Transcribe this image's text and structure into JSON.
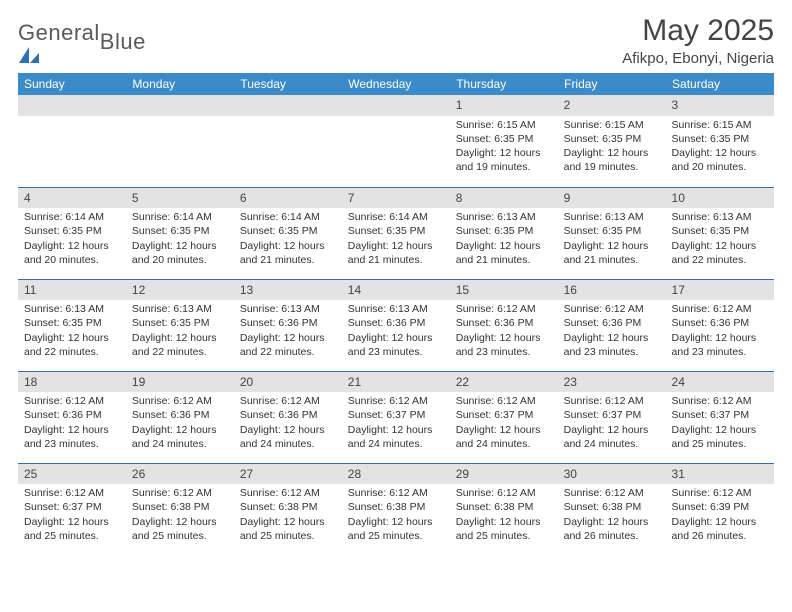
{
  "brand": {
    "part1": "General",
    "part2": "Blue"
  },
  "title": "May 2025",
  "location": "Afikpo, Ebonyi, Nigeria",
  "colors": {
    "header_bg": "#3b8bca",
    "header_text": "#ffffff",
    "daynum_bg": "#e3e3e3",
    "border": "#2f6fb3",
    "text": "#333333",
    "title": "#444444",
    "logo_gray": "#5a5a5a",
    "logo_blue": "#2f6fb3"
  },
  "typography": {
    "font_family": "Arial",
    "title_size_pt": 22,
    "location_size_pt": 11,
    "dayhead_size_pt": 9,
    "body_size_pt": 8
  },
  "dayHeaders": [
    "Sunday",
    "Monday",
    "Tuesday",
    "Wednesday",
    "Thursday",
    "Friday",
    "Saturday"
  ],
  "weeks": [
    [
      {
        "n": "",
        "sr": "",
        "ss": "",
        "dl": ""
      },
      {
        "n": "",
        "sr": "",
        "ss": "",
        "dl": ""
      },
      {
        "n": "",
        "sr": "",
        "ss": "",
        "dl": ""
      },
      {
        "n": "",
        "sr": "",
        "ss": "",
        "dl": ""
      },
      {
        "n": "1",
        "sr": "6:15 AM",
        "ss": "6:35 PM",
        "dl": "12 hours and 19 minutes."
      },
      {
        "n": "2",
        "sr": "6:15 AM",
        "ss": "6:35 PM",
        "dl": "12 hours and 19 minutes."
      },
      {
        "n": "3",
        "sr": "6:15 AM",
        "ss": "6:35 PM",
        "dl": "12 hours and 20 minutes."
      }
    ],
    [
      {
        "n": "4",
        "sr": "6:14 AM",
        "ss": "6:35 PM",
        "dl": "12 hours and 20 minutes."
      },
      {
        "n": "5",
        "sr": "6:14 AM",
        "ss": "6:35 PM",
        "dl": "12 hours and 20 minutes."
      },
      {
        "n": "6",
        "sr": "6:14 AM",
        "ss": "6:35 PM",
        "dl": "12 hours and 21 minutes."
      },
      {
        "n": "7",
        "sr": "6:14 AM",
        "ss": "6:35 PM",
        "dl": "12 hours and 21 minutes."
      },
      {
        "n": "8",
        "sr": "6:13 AM",
        "ss": "6:35 PM",
        "dl": "12 hours and 21 minutes."
      },
      {
        "n": "9",
        "sr": "6:13 AM",
        "ss": "6:35 PM",
        "dl": "12 hours and 21 minutes."
      },
      {
        "n": "10",
        "sr": "6:13 AM",
        "ss": "6:35 PM",
        "dl": "12 hours and 22 minutes."
      }
    ],
    [
      {
        "n": "11",
        "sr": "6:13 AM",
        "ss": "6:35 PM",
        "dl": "12 hours and 22 minutes."
      },
      {
        "n": "12",
        "sr": "6:13 AM",
        "ss": "6:35 PM",
        "dl": "12 hours and 22 minutes."
      },
      {
        "n": "13",
        "sr": "6:13 AM",
        "ss": "6:36 PM",
        "dl": "12 hours and 22 minutes."
      },
      {
        "n": "14",
        "sr": "6:13 AM",
        "ss": "6:36 PM",
        "dl": "12 hours and 23 minutes."
      },
      {
        "n": "15",
        "sr": "6:12 AM",
        "ss": "6:36 PM",
        "dl": "12 hours and 23 minutes."
      },
      {
        "n": "16",
        "sr": "6:12 AM",
        "ss": "6:36 PM",
        "dl": "12 hours and 23 minutes."
      },
      {
        "n": "17",
        "sr": "6:12 AM",
        "ss": "6:36 PM",
        "dl": "12 hours and 23 minutes."
      }
    ],
    [
      {
        "n": "18",
        "sr": "6:12 AM",
        "ss": "6:36 PM",
        "dl": "12 hours and 23 minutes."
      },
      {
        "n": "19",
        "sr": "6:12 AM",
        "ss": "6:36 PM",
        "dl": "12 hours and 24 minutes."
      },
      {
        "n": "20",
        "sr": "6:12 AM",
        "ss": "6:36 PM",
        "dl": "12 hours and 24 minutes."
      },
      {
        "n": "21",
        "sr": "6:12 AM",
        "ss": "6:37 PM",
        "dl": "12 hours and 24 minutes."
      },
      {
        "n": "22",
        "sr": "6:12 AM",
        "ss": "6:37 PM",
        "dl": "12 hours and 24 minutes."
      },
      {
        "n": "23",
        "sr": "6:12 AM",
        "ss": "6:37 PM",
        "dl": "12 hours and 24 minutes."
      },
      {
        "n": "24",
        "sr": "6:12 AM",
        "ss": "6:37 PM",
        "dl": "12 hours and 25 minutes."
      }
    ],
    [
      {
        "n": "25",
        "sr": "6:12 AM",
        "ss": "6:37 PM",
        "dl": "12 hours and 25 minutes."
      },
      {
        "n": "26",
        "sr": "6:12 AM",
        "ss": "6:38 PM",
        "dl": "12 hours and 25 minutes."
      },
      {
        "n": "27",
        "sr": "6:12 AM",
        "ss": "6:38 PM",
        "dl": "12 hours and 25 minutes."
      },
      {
        "n": "28",
        "sr": "6:12 AM",
        "ss": "6:38 PM",
        "dl": "12 hours and 25 minutes."
      },
      {
        "n": "29",
        "sr": "6:12 AM",
        "ss": "6:38 PM",
        "dl": "12 hours and 25 minutes."
      },
      {
        "n": "30",
        "sr": "6:12 AM",
        "ss": "6:38 PM",
        "dl": "12 hours and 26 minutes."
      },
      {
        "n": "31",
        "sr": "6:12 AM",
        "ss": "6:39 PM",
        "dl": "12 hours and 26 minutes."
      }
    ]
  ],
  "labels": {
    "sunrise": "Sunrise:",
    "sunset": "Sunset:",
    "daylight": "Daylight:"
  }
}
